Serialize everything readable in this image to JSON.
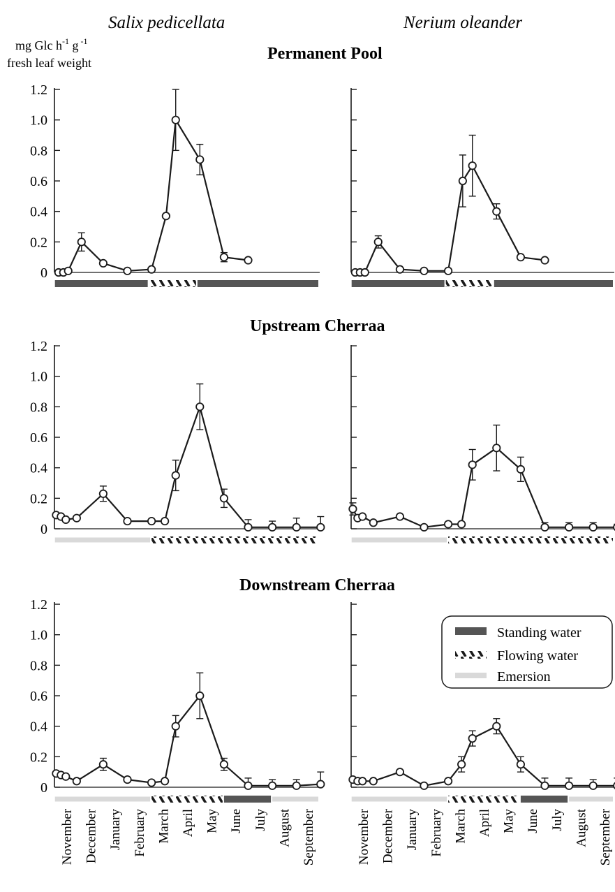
{
  "figure": {
    "column_titles": [
      "Salix pedicellata",
      "Nerium oleander"
    ],
    "ylabel_line1": "mg Glc h",
    "ylabel_sup1": "-1",
    "ylabel_mid": " g",
    "ylabel_sup2": " -1",
    "ylabel_line2": "fresh leaf weight",
    "row_titles": [
      "Permanent Pool",
      "Upstream Cherraa",
      "Downstream Cherraa"
    ],
    "yticks": [
      "0",
      "0.2",
      "0.4",
      "0.6",
      "0.8",
      "1.0",
      "1.2"
    ],
    "months": [
      "November",
      "December",
      "January",
      "February",
      "March",
      "April",
      "May",
      "June",
      "July",
      "August",
      "September"
    ],
    "legend": [
      {
        "label": "Standing water",
        "kind": "standing"
      },
      {
        "label": "Flowing water",
        "kind": "flowing"
      },
      {
        "label": "Emersion",
        "kind": "emersion"
      }
    ],
    "colors": {
      "line": "#1a1a1a",
      "marker_fill": "#ffffff",
      "standing": "#555555",
      "flowing": "#222222",
      "emersion": "#d9d9d9"
    }
  },
  "chart_data": [
    {
      "type": "line",
      "species": "Salix pedicellata",
      "site": "Permanent Pool",
      "ylim": [
        0,
        1.2
      ],
      "x": [
        -0.35,
        -0.15,
        0.05,
        0.6,
        1.5,
        2.5,
        3.5,
        4.1,
        4.5,
        5.5,
        6.5,
        7.5
      ],
      "y": [
        0,
        0,
        0.01,
        0.2,
        0.06,
        0.01,
        0.02,
        0.37,
        1.0,
        0.74,
        0.1,
        0.08
      ],
      "err": [
        0,
        0,
        0,
        0.06,
        0,
        0,
        0,
        0,
        0.2,
        0.1,
        0.03,
        0
      ],
      "periods": [
        {
          "kind": "standing",
          "start": -0.5,
          "end": 3.4
        },
        {
          "kind": "flowing",
          "start": 3.4,
          "end": 5.4
        },
        {
          "kind": "standing",
          "start": 5.4,
          "end": 10.6
        }
      ]
    },
    {
      "type": "line",
      "species": "Nerium oleander",
      "site": "Permanent Pool",
      "ylim": [
        0,
        1.2
      ],
      "x": [
        -0.35,
        -0.15,
        0.05,
        0.6,
        1.5,
        2.5,
        3.5,
        4.1,
        4.5,
        5.5,
        6.5,
        7.5
      ],
      "y": [
        0,
        0,
        0,
        0.2,
        0.02,
        0.01,
        0.01,
        0.6,
        0.7,
        0.4,
        0.1,
        0.08
      ],
      "err": [
        0,
        0,
        0,
        0.04,
        0,
        0,
        0,
        0.17,
        0.2,
        0.05,
        0,
        0
      ],
      "periods": [
        {
          "kind": "standing",
          "start": -0.5,
          "end": 3.4
        },
        {
          "kind": "flowing",
          "start": 3.4,
          "end": 5.4
        },
        {
          "kind": "standing",
          "start": 5.4,
          "end": 10.6
        }
      ]
    },
    {
      "type": "line",
      "species": "Salix pedicellata",
      "site": "Upstream Cherraa",
      "ylim": [
        0,
        1.2
      ],
      "x": [
        -0.45,
        -0.25,
        -0.05,
        0.4,
        1.5,
        2.5,
        3.5,
        4.05,
        4.5,
        5.5,
        6.5,
        7.5,
        8.5,
        9.5,
        10.5
      ],
      "y": [
        0.09,
        0.08,
        0.06,
        0.07,
        0.23,
        0.05,
        0.05,
        0.05,
        0.35,
        0.8,
        0.2,
        0.01,
        0.01,
        0.01,
        0.01
      ],
      "err": [
        0,
        0,
        0,
        0,
        0.05,
        0,
        0,
        0,
        0.1,
        0.15,
        0.06,
        0.05,
        0.04,
        0.06,
        0.07
      ],
      "periods": [
        {
          "kind": "emersion",
          "start": -0.5,
          "end": 3.5
        },
        {
          "kind": "flowing",
          "start": 3.5,
          "end": 10.6
        }
      ]
    },
    {
      "type": "line",
      "species": "Nerium oleander",
      "site": "Upstream Cherraa",
      "ylim": [
        0,
        1.2
      ],
      "x": [
        -0.45,
        -0.25,
        -0.05,
        0.4,
        1.5,
        2.5,
        3.5,
        4.05,
        4.5,
        5.5,
        6.5,
        7.5,
        8.5,
        9.5,
        10.5
      ],
      "y": [
        0.13,
        0.07,
        0.08,
        0.04,
        0.08,
        0.01,
        0.03,
        0.03,
        0.42,
        0.53,
        0.39,
        0.01,
        0.01,
        0.01,
        0.01
      ],
      "err": [
        0.04,
        0,
        0,
        0,
        0,
        0,
        0,
        0,
        0.1,
        0.15,
        0.08,
        0.03,
        0.03,
        0.03,
        0.02
      ],
      "periods": [
        {
          "kind": "emersion",
          "start": -0.5,
          "end": 3.5
        },
        {
          "kind": "flowing",
          "start": 3.5,
          "end": 10.6
        }
      ]
    },
    {
      "type": "line",
      "species": "Salix pedicellata",
      "site": "Downstream Cherraa",
      "ylim": [
        0,
        1.2
      ],
      "x": [
        -0.45,
        -0.25,
        -0.05,
        0.4,
        1.5,
        2.5,
        3.5,
        4.05,
        4.5,
        5.5,
        6.5,
        7.5,
        8.5,
        9.5,
        10.5
      ],
      "y": [
        0.09,
        0.08,
        0.07,
        0.04,
        0.15,
        0.05,
        0.03,
        0.04,
        0.4,
        0.6,
        0.15,
        0.01,
        0.01,
        0.01,
        0.02
      ],
      "err": [
        0,
        0,
        0,
        0,
        0.04,
        0,
        0,
        0,
        0.07,
        0.15,
        0.04,
        0.05,
        0.04,
        0.04,
        0.08
      ],
      "periods": [
        {
          "kind": "emersion",
          "start": -0.5,
          "end": 3.5
        },
        {
          "kind": "flowing",
          "start": 3.5,
          "end": 6.5
        },
        {
          "kind": "standing",
          "start": 6.5,
          "end": 8.5
        },
        {
          "kind": "emersion",
          "start": 8.5,
          "end": 10.6
        }
      ]
    },
    {
      "type": "line",
      "species": "Nerium oleander",
      "site": "Downstream Cherraa",
      "ylim": [
        0,
        1.2
      ],
      "x": [
        -0.45,
        -0.25,
        -0.05,
        0.4,
        1.5,
        2.5,
        3.5,
        4.05,
        4.5,
        5.5,
        6.5,
        7.5,
        8.5,
        9.5,
        10.5
      ],
      "y": [
        0.05,
        0.04,
        0.04,
        0.04,
        0.1,
        0.01,
        0.04,
        0.15,
        0.32,
        0.4,
        0.15,
        0.01,
        0.01,
        0.01,
        0.01
      ],
      "err": [
        0,
        0,
        0,
        0,
        0,
        0,
        0,
        0.05,
        0.05,
        0.05,
        0.05,
        0.05,
        0.05,
        0.04,
        0.05
      ],
      "periods": [
        {
          "kind": "emersion",
          "start": -0.5,
          "end": 3.5
        },
        {
          "kind": "flowing",
          "start": 3.5,
          "end": 6.5
        },
        {
          "kind": "standing",
          "start": 6.5,
          "end": 8.5
        },
        {
          "kind": "emersion",
          "start": 8.5,
          "end": 10.6
        }
      ]
    }
  ]
}
